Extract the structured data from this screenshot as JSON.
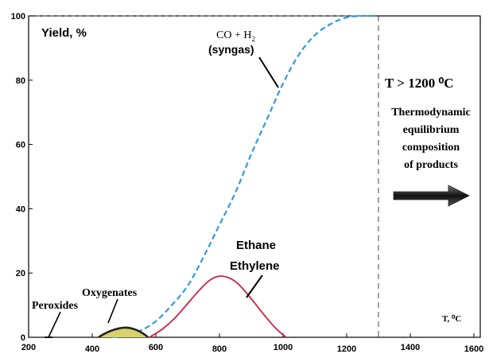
{
  "chart_data": {
    "type": "line",
    "title": "",
    "ylabel": "Yield, %",
    "xlabel": "T, ⁰C",
    "xlim": [
      200,
      1600
    ],
    "ylim": [
      0,
      100
    ],
    "x_ticks": [
      "200",
      "400",
      "600",
      "800",
      "1000",
      "1200",
      "1400",
      "1600"
    ],
    "y_ticks": [
      "0",
      "20",
      "40",
      "60",
      "80",
      "100"
    ],
    "series": [
      {
        "name": "CO + H₂ (syngas)",
        "color": "#3399dd",
        "style": "dashed",
        "points": [
          [
            460,
            0
          ],
          [
            500,
            0.5
          ],
          [
            550,
            2
          ],
          [
            600,
            5
          ],
          [
            650,
            10
          ],
          [
            700,
            16
          ],
          [
            750,
            25
          ],
          [
            800,
            35
          ],
          [
            850,
            45
          ],
          [
            900,
            57
          ],
          [
            950,
            68
          ],
          [
            1000,
            79
          ],
          [
            1050,
            88
          ],
          [
            1100,
            94
          ],
          [
            1150,
            97.5
          ],
          [
            1200,
            99.5
          ],
          [
            1250,
            100
          ],
          [
            1290,
            100
          ]
        ]
      },
      {
        "name": "Ethane Ethylene",
        "color": "#cc2244",
        "style": "solid",
        "points": [
          [
            580,
            0
          ],
          [
            620,
            2.5
          ],
          [
            660,
            6
          ],
          [
            700,
            10.5
          ],
          [
            740,
            15
          ],
          [
            770,
            17.8
          ],
          [
            800,
            19
          ],
          [
            830,
            18.5
          ],
          [
            860,
            16.5
          ],
          [
            900,
            12
          ],
          [
            940,
            7
          ],
          [
            980,
            2.5
          ],
          [
            1010,
            0
          ]
        ]
      },
      {
        "name": "Oxygenates",
        "color": "#222222",
        "fill": "#d9d26a",
        "style": "solid",
        "points": [
          [
            420,
            0
          ],
          [
            440,
            1.2
          ],
          [
            470,
            2.4
          ],
          [
            500,
            3
          ],
          [
            530,
            2.6
          ],
          [
            560,
            1.2
          ],
          [
            575,
            0
          ]
        ]
      },
      {
        "name": "Peroxides",
        "color": "#000000",
        "style": "solid",
        "points": [
          [
            250,
            0
          ],
          [
            275,
            0
          ]
        ]
      }
    ],
    "annotations": [
      {
        "id": "syngas_line1",
        "text": "CO + H"
      },
      {
        "id": "syngas_sub",
        "text": "2"
      },
      {
        "id": "syngas_line2",
        "text": "(syngas)"
      },
      {
        "id": "ethane",
        "text": "Ethane"
      },
      {
        "id": "ethylene",
        "text": "Ethylene"
      },
      {
        "id": "oxygenates",
        "text": "Oxygenates"
      },
      {
        "id": "peroxides",
        "text": "Peroxides"
      },
      {
        "id": "region_title",
        "text": "T > 1200 ⁰C"
      },
      {
        "id": "region_line1",
        "text": "Thermodynamic"
      },
      {
        "id": "region_line2",
        "text": "equilibrium"
      },
      {
        "id": "region_line3",
        "text": "composition"
      },
      {
        "id": "region_line4",
        "text": "of products"
      }
    ],
    "threshold_x": 1300,
    "grid": false
  }
}
